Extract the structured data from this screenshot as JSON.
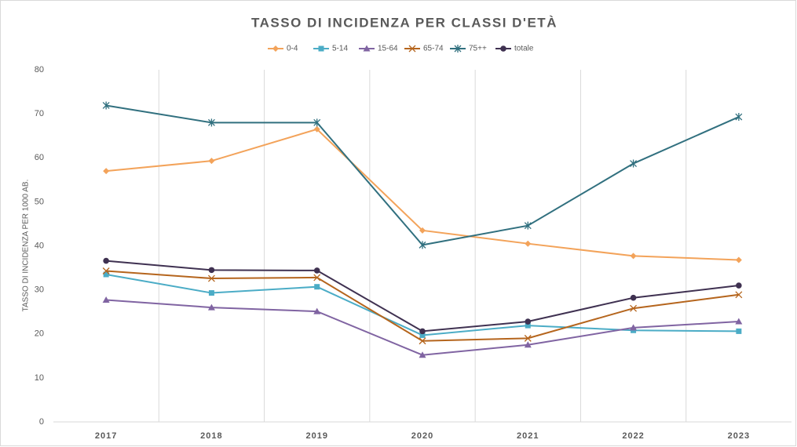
{
  "chart_data": {
    "type": "line",
    "title": "TASSO DI INCIDENZA PER CLASSI D'ETÀ",
    "y_label": "TASSO DI INCIDENZA PER 1000 AB.",
    "categories": [
      "2017",
      "2018",
      "2019",
      "2020",
      "2021",
      "2022",
      "2023"
    ],
    "series": [
      {
        "name": "0-4",
        "color": "#f3a35a",
        "marker": "diamond",
        "values": [
          57,
          59.3,
          66.5,
          43.5,
          40.5,
          37.7,
          36.8
        ]
      },
      {
        "name": "5-14",
        "color": "#4bacc6",
        "marker": "square",
        "values": [
          33.5,
          29.3,
          30.7,
          19.7,
          21.9,
          20.8,
          20.6
        ]
      },
      {
        "name": "15-64",
        "color": "#8064a2",
        "marker": "triangle",
        "values": [
          27.7,
          26,
          25.1,
          15.2,
          17.5,
          21.4,
          22.8
        ]
      },
      {
        "name": "65-74",
        "color": "#b5651d",
        "marker": "x",
        "values": [
          34.3,
          32.6,
          32.8,
          18.4,
          19,
          25.8,
          28.9
        ]
      },
      {
        "name": "75++",
        "color": "#31707f",
        "marker": "star",
        "values": [
          71.9,
          68,
          68,
          40.2,
          44.6,
          58.7,
          69.3
        ]
      },
      {
        "name": "totale",
        "color": "#3f3151",
        "marker": "circle",
        "values": [
          36.6,
          34.5,
          34.4,
          20.6,
          22.8,
          28.2,
          31
        ]
      }
    ],
    "ylim": [
      0,
      80
    ],
    "yticks": [
      0,
      10,
      20,
      30,
      40,
      50,
      60,
      70,
      80
    ],
    "grid": "vertical",
    "legend": "top"
  }
}
